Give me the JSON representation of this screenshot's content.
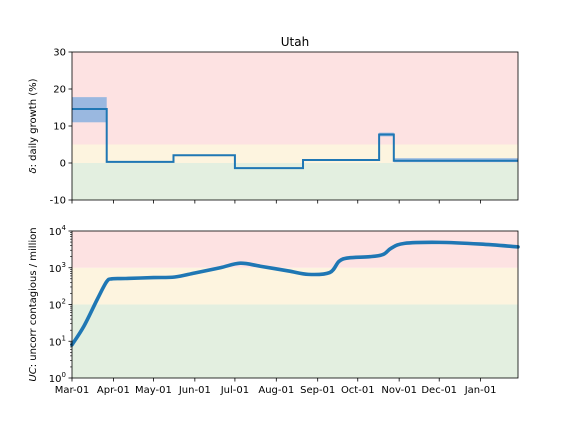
{
  "chart_data": [
    {
      "type": "line",
      "title": "Utah",
      "ylabel_symbol": "δ",
      "ylabel_text": ": daily growth (%)",
      "ylim": [
        -10,
        30
      ],
      "yticks": [
        -10,
        0,
        10,
        20,
        30
      ],
      "x_range": [
        "2020-03-01",
        "2021-01-29"
      ],
      "bands": [
        {
          "from": -10,
          "to": 0,
          "color": "#e3efe0"
        },
        {
          "from": 0,
          "to": 5,
          "color": "#fdf4df"
        },
        {
          "from": 5,
          "to": 30,
          "color": "#fde2e2"
        }
      ],
      "series": [
        {
          "color": "#1f77b4",
          "band_color": "#8fb4e0",
          "step_points": [
            {
              "x": "2020-03-01",
              "y": 14.6,
              "lo": 11.0,
              "hi": 17.8
            },
            {
              "x": "2020-03-27",
              "y": 0.3,
              "lo": 0.1,
              "hi": 0.5
            },
            {
              "x": "2020-05-16",
              "y": 2.1,
              "lo": 1.9,
              "hi": 2.3
            },
            {
              "x": "2020-07-01",
              "y": -1.4,
              "lo": -1.6,
              "hi": -1.2
            },
            {
              "x": "2020-08-21",
              "y": 0.8,
              "lo": 0.6,
              "hi": 1.0
            },
            {
              "x": "2020-10-17",
              "y": 7.7,
              "lo": 7.2,
              "hi": 8.2
            },
            {
              "x": "2020-10-28",
              "y": 0.6,
              "lo": 0.2,
              "hi": 1.3
            },
            {
              "x": "2021-01-29",
              "y": 0.6,
              "lo": 0.2,
              "hi": 1.3
            }
          ]
        }
      ]
    },
    {
      "type": "line",
      "ylabel_symbol": "UC",
      "ylabel_text": ": uncorr contagious / million",
      "yscale": "log",
      "ylim": [
        1,
        10000
      ],
      "yticks": [
        1,
        10,
        100,
        1000,
        10000
      ],
      "ytick_exponents": [
        "0",
        "1",
        "2",
        "3",
        "4"
      ],
      "x_range": [
        "2020-03-01",
        "2021-01-29"
      ],
      "xticks": [
        "2020-03-01",
        "2020-04-01",
        "2020-05-01",
        "2020-06-01",
        "2020-07-01",
        "2020-08-01",
        "2020-09-01",
        "2020-10-01",
        "2020-11-01",
        "2020-12-01",
        "2021-01-01"
      ],
      "xtick_labels": [
        "Mar-01",
        "Apr-01",
        "May-01",
        "Jun-01",
        "Jul-01",
        "Aug-01",
        "Sep-01",
        "Oct-01",
        "Nov-01",
        "Dec-01",
        "Jan-01"
      ],
      "bands": [
        {
          "from": 1,
          "to": 100,
          "color": "#e3efe0"
        },
        {
          "from": 100,
          "to": 1000,
          "color": "#fdf4df"
        },
        {
          "from": 1000,
          "to": 10000,
          "color": "#fde2e2"
        }
      ],
      "series": [
        {
          "color": "#1f77b4",
          "points": [
            {
              "x": "2020-03-01",
              "y": 8
            },
            {
              "x": "2020-03-10",
              "y": 26
            },
            {
              "x": "2020-03-20",
              "y": 140
            },
            {
              "x": "2020-03-27",
              "y": 420
            },
            {
              "x": "2020-03-31",
              "y": 500
            },
            {
              "x": "2020-04-10",
              "y": 510
            },
            {
              "x": "2020-05-01",
              "y": 540
            },
            {
              "x": "2020-05-17",
              "y": 560
            },
            {
              "x": "2020-06-01",
              "y": 720
            },
            {
              "x": "2020-06-20",
              "y": 1000
            },
            {
              "x": "2020-07-05",
              "y": 1330
            },
            {
              "x": "2020-07-20",
              "y": 1100
            },
            {
              "x": "2020-08-10",
              "y": 820
            },
            {
              "x": "2020-08-25",
              "y": 660
            },
            {
              "x": "2020-09-10",
              "y": 740
            },
            {
              "x": "2020-09-17",
              "y": 1500
            },
            {
              "x": "2020-09-24",
              "y": 1850
            },
            {
              "x": "2020-10-10",
              "y": 2000
            },
            {
              "x": "2020-10-20",
              "y": 2300
            },
            {
              "x": "2020-10-26",
              "y": 3400
            },
            {
              "x": "2020-11-05",
              "y": 4600
            },
            {
              "x": "2020-12-01",
              "y": 4900
            },
            {
              "x": "2021-01-01",
              "y": 4400
            },
            {
              "x": "2021-01-29",
              "y": 3700
            }
          ]
        }
      ]
    }
  ]
}
